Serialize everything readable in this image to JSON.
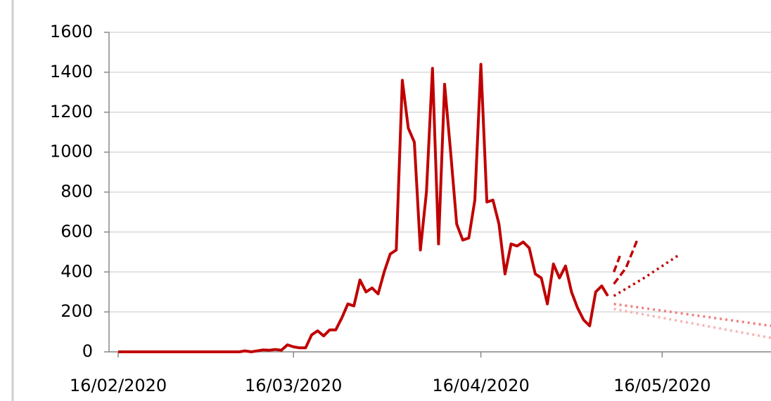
{
  "chart_data": {
    "type": "line",
    "xlim": [
      "16/02/2020",
      "03/06/2020"
    ],
    "xticks": [
      "16/02/2020",
      "16/03/2020",
      "16/04/2020",
      "16/05/2020"
    ],
    "ylim": [
      0,
      1600
    ],
    "yticks": [
      0,
      200,
      400,
      600,
      800,
      1000,
      1200,
      1400,
      1600
    ],
    "grid": true,
    "series": [
      {
        "color": "#c00000",
        "style": "solid",
        "x": [
          "16/02/2020",
          "17/02/2020",
          "18/02/2020",
          "19/02/2020",
          "20/02/2020",
          "21/02/2020",
          "22/02/2020",
          "23/02/2020",
          "24/02/2020",
          "25/02/2020",
          "26/02/2020",
          "27/02/2020",
          "28/02/2020",
          "29/02/2020",
          "01/03/2020",
          "02/03/2020",
          "03/03/2020",
          "04/03/2020",
          "05/03/2020",
          "06/03/2020",
          "07/03/2020",
          "08/03/2020",
          "09/03/2020",
          "10/03/2020",
          "11/03/2020",
          "12/03/2020",
          "13/03/2020",
          "14/03/2020",
          "15/03/2020",
          "16/03/2020",
          "17/03/2020",
          "18/03/2020",
          "19/03/2020",
          "20/03/2020",
          "21/03/2020",
          "22/03/2020",
          "23/03/2020",
          "24/03/2020",
          "25/03/2020",
          "26/03/2020",
          "27/03/2020",
          "28/03/2020",
          "29/03/2020",
          "30/03/2020",
          "31/03/2020",
          "01/04/2020",
          "02/04/2020",
          "03/04/2020",
          "04/04/2020",
          "05/04/2020",
          "06/04/2020",
          "07/04/2020",
          "08/04/2020",
          "09/04/2020",
          "10/04/2020",
          "11/04/2020",
          "12/04/2020",
          "13/04/2020",
          "14/04/2020",
          "15/04/2020",
          "16/04/2020",
          "17/04/2020",
          "18/04/2020",
          "19/04/2020",
          "20/04/2020",
          "21/04/2020",
          "22/04/2020",
          "23/04/2020",
          "24/04/2020",
          "25/04/2020",
          "26/04/2020",
          "27/04/2020",
          "28/04/2020",
          "29/04/2020",
          "30/04/2020",
          "01/05/2020",
          "02/05/2020",
          "03/05/2020",
          "04/05/2020",
          "05/05/2020",
          "06/05/2020",
          "07/05/2020"
        ],
        "values": [
          0,
          0,
          0,
          0,
          0,
          0,
          0,
          0,
          0,
          0,
          0,
          0,
          0,
          0,
          0,
          0,
          0,
          0,
          0,
          0,
          0,
          5,
          0,
          5,
          10,
          8,
          12,
          8,
          35,
          25,
          20,
          20,
          85,
          105,
          80,
          110,
          110,
          170,
          240,
          230,
          360,
          300,
          320,
          290,
          400,
          490,
          510,
          1360,
          1120,
          1050,
          510,
          800,
          1420,
          540,
          1340,
          1000,
          640,
          560,
          570,
          760,
          1440,
          750,
          760,
          640,
          390,
          540,
          530,
          550,
          520,
          390,
          370,
          240,
          440,
          370,
          430,
          300,
          220,
          160,
          130,
          300,
          330,
          280
        ]
      },
      {
        "color": "#c00000",
        "style": "dashed",
        "x": [
          "08/05/2020",
          "09/05/2020"
        ],
        "values": [
          400,
          480
        ]
      },
      {
        "color": "#c00000",
        "style": "dashed",
        "x": [
          "08/05/2020",
          "10/05/2020",
          "12/05/2020"
        ],
        "values": [
          340,
          420,
          570
        ]
      },
      {
        "color": "#c00000",
        "style": "dotted",
        "x": [
          "08/05/2020",
          "13/05/2020",
          "19/05/2020"
        ],
        "values": [
          280,
          370,
          490
        ]
      },
      {
        "color": "#f08080",
        "style": "dotted",
        "x": [
          "08/05/2020",
          "03/06/2020"
        ],
        "values": [
          240,
          130
        ]
      },
      {
        "color": "#f6b4b4",
        "style": "dotted",
        "x": [
          "08/05/2020",
          "03/06/2020"
        ],
        "values": [
          215,
          70
        ]
      }
    ]
  }
}
